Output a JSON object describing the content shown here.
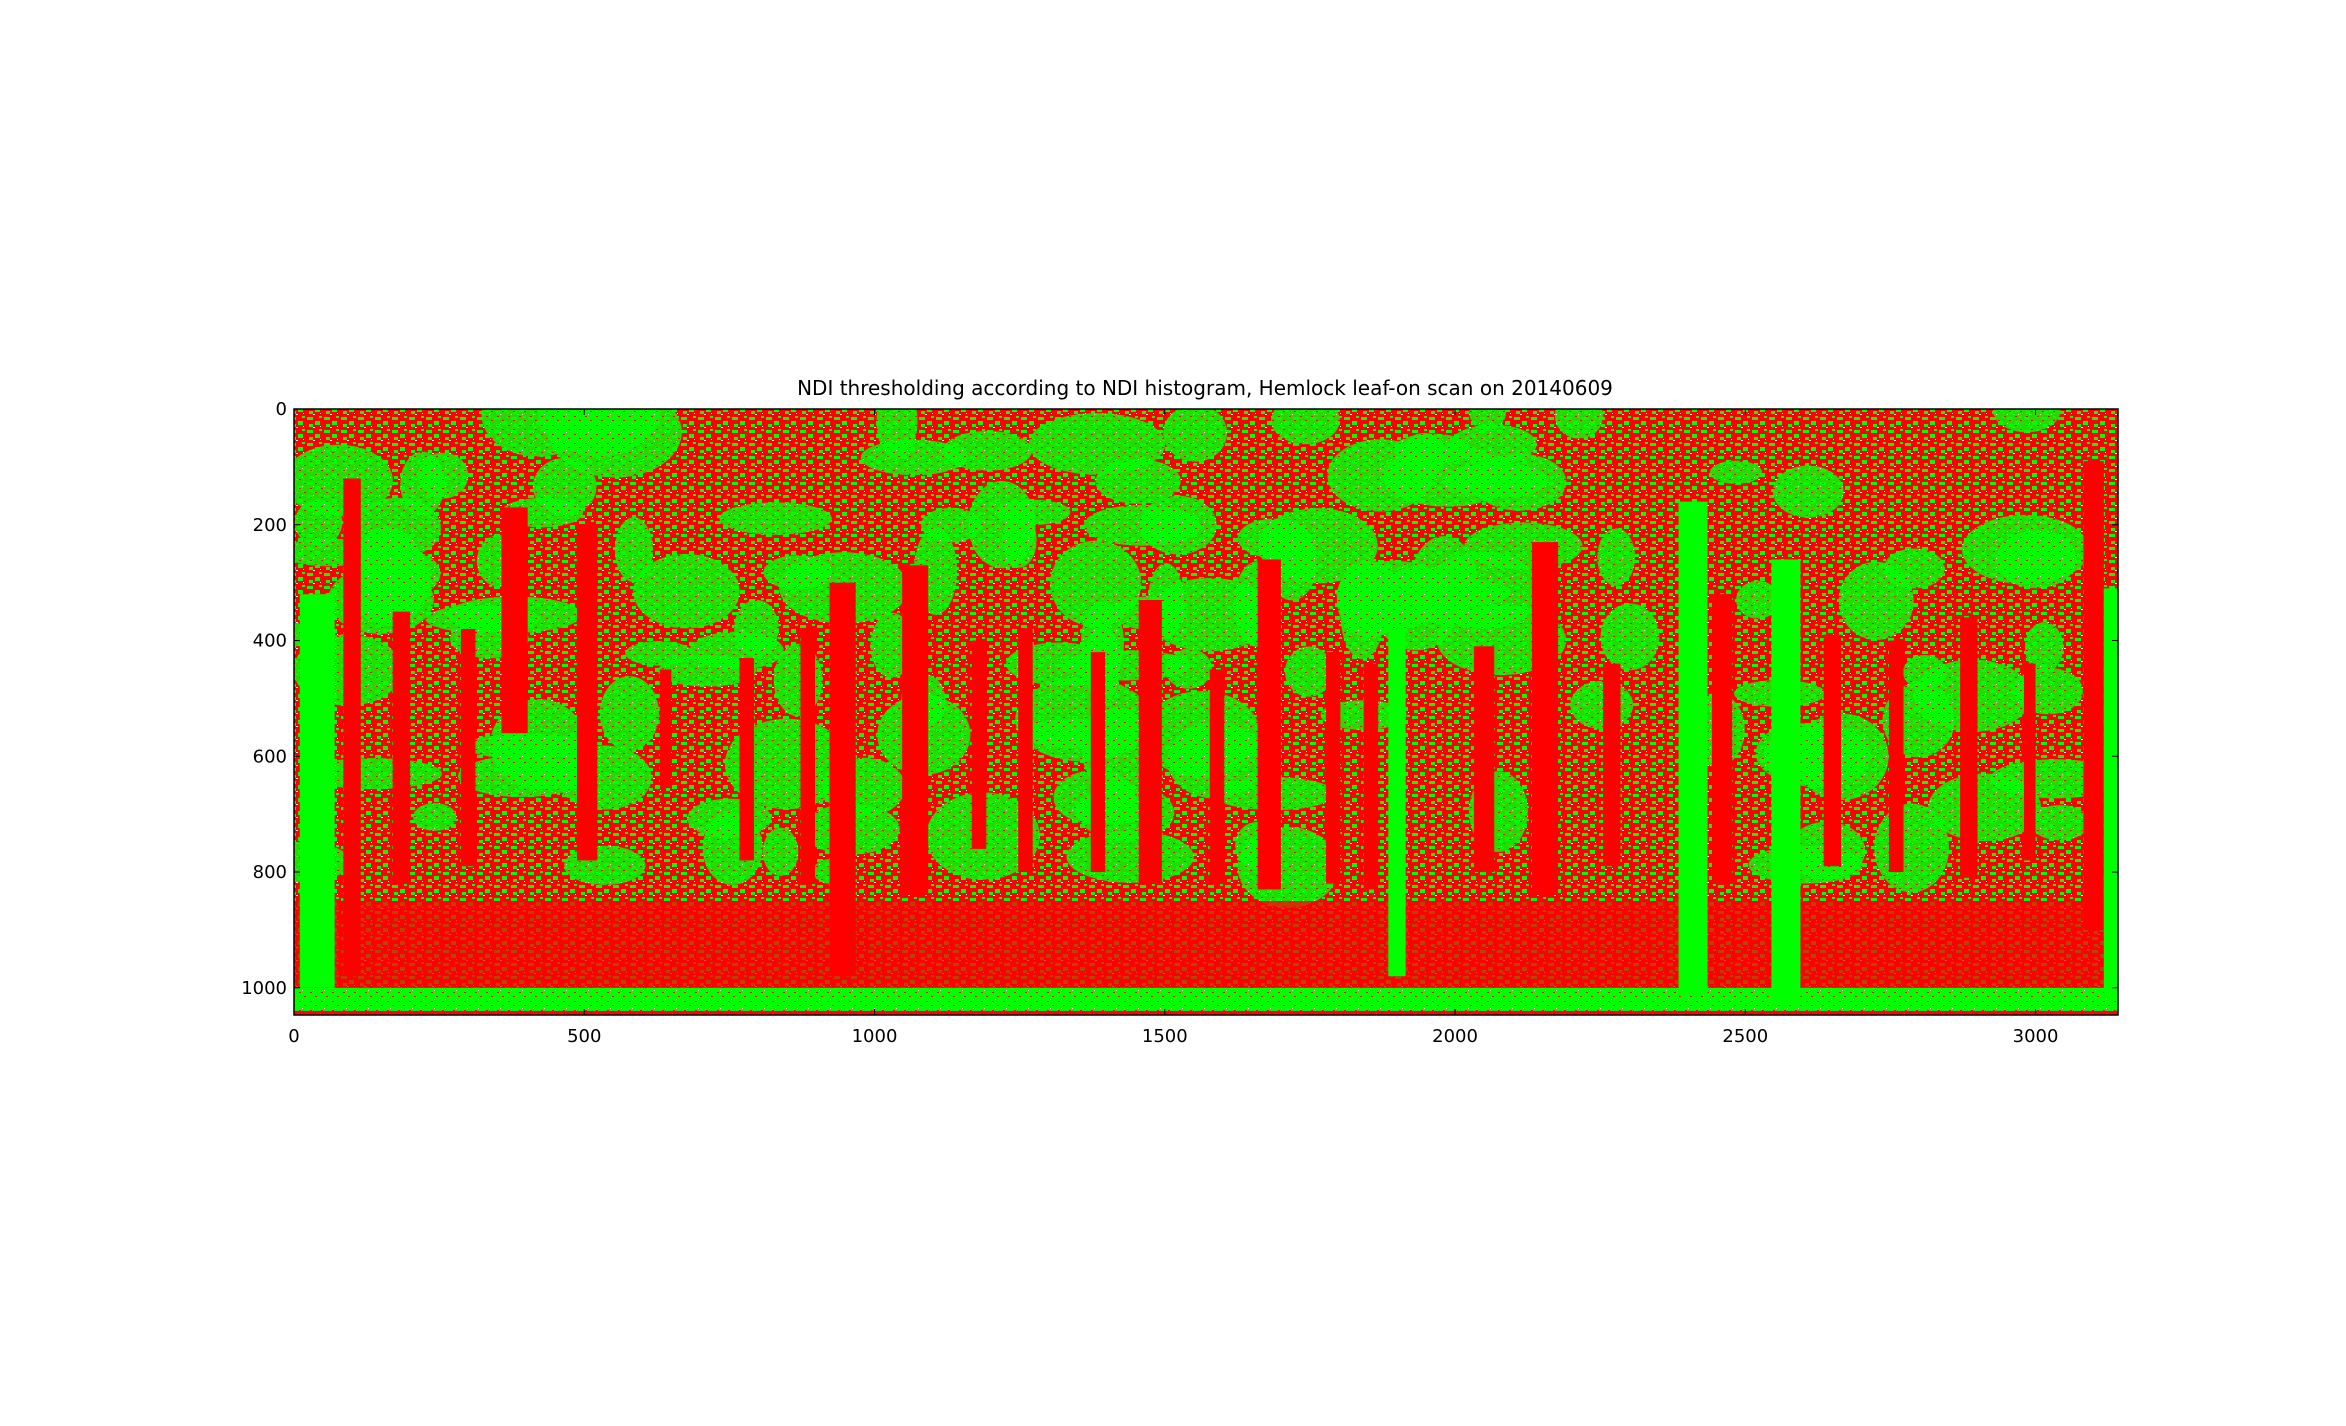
{
  "chart_data": {
    "type": "heatmap",
    "title": "NDI thresholding according to NDI histogram, Hemlock leaf-on scan on 20140609",
    "xlabel": "",
    "ylabel": "",
    "xlim": [
      0,
      3142
    ],
    "ylim": [
      1047,
      0
    ],
    "xticks": [
      0,
      500,
      1000,
      1500,
      2000,
      2500,
      3000
    ],
    "yticks": [
      0,
      200,
      400,
      600,
      800,
      1000
    ],
    "classes": [
      {
        "value": 0,
        "color": "#ff0000"
      },
      {
        "value": 1,
        "color": "#00ff00"
      },
      {
        "value": 2,
        "color": "#ffffff"
      }
    ],
    "trunks": [
      {
        "x": 100,
        "top": 120,
        "bottom": 980,
        "w": 30
      },
      {
        "x": 185,
        "top": 350,
        "bottom": 820,
        "w": 30
      },
      {
        "x": 300,
        "top": 380,
        "bottom": 790,
        "w": 25
      },
      {
        "x": 380,
        "top": 170,
        "bottom": 560,
        "w": 45
      },
      {
        "x": 505,
        "top": 200,
        "bottom": 780,
        "w": 35
      },
      {
        "x": 640,
        "top": 450,
        "bottom": 650,
        "w": 20
      },
      {
        "x": 780,
        "top": 430,
        "bottom": 780,
        "w": 25
      },
      {
        "x": 885,
        "top": 380,
        "bottom": 820,
        "w": 25
      },
      {
        "x": 945,
        "top": 300,
        "bottom": 980,
        "w": 45
      },
      {
        "x": 1070,
        "top": 270,
        "bottom": 840,
        "w": 45
      },
      {
        "x": 1180,
        "top": 400,
        "bottom": 760,
        "w": 25
      },
      {
        "x": 1260,
        "top": 380,
        "bottom": 800,
        "w": 25
      },
      {
        "x": 1385,
        "top": 420,
        "bottom": 800,
        "w": 25
      },
      {
        "x": 1475,
        "top": 330,
        "bottom": 820,
        "w": 40
      },
      {
        "x": 1590,
        "top": 450,
        "bottom": 820,
        "w": 25
      },
      {
        "x": 1680,
        "top": 260,
        "bottom": 830,
        "w": 40
      },
      {
        "x": 1790,
        "top": 420,
        "bottom": 820,
        "w": 25
      },
      {
        "x": 1855,
        "top": 440,
        "bottom": 830,
        "w": 25
      },
      {
        "x": 2050,
        "top": 410,
        "bottom": 800,
        "w": 35
      },
      {
        "x": 2155,
        "top": 230,
        "bottom": 840,
        "w": 45
      },
      {
        "x": 2270,
        "top": 440,
        "bottom": 790,
        "w": 30
      },
      {
        "x": 2460,
        "top": 320,
        "bottom": 820,
        "w": 35
      },
      {
        "x": 2650,
        "top": 390,
        "bottom": 790,
        "w": 30
      },
      {
        "x": 2760,
        "top": 400,
        "bottom": 800,
        "w": 25
      },
      {
        "x": 2885,
        "top": 360,
        "bottom": 810,
        "w": 30
      },
      {
        "x": 2990,
        "top": 440,
        "bottom": 780,
        "w": 20
      },
      {
        "x": 3100,
        "top": 90,
        "bottom": 900,
        "w": 35
      }
    ],
    "bright_trunks": [
      {
        "x": 40,
        "top": 320,
        "bottom": 1000,
        "w": 60
      },
      {
        "x": 1900,
        "top": 380,
        "bottom": 980,
        "w": 30
      },
      {
        "x": 2410,
        "top": 160,
        "bottom": 1010,
        "w": 50
      },
      {
        "x": 2570,
        "top": 260,
        "bottom": 1030,
        "w": 50
      },
      {
        "x": 3130,
        "top": 310,
        "bottom": 1020,
        "w": 25
      }
    ]
  }
}
